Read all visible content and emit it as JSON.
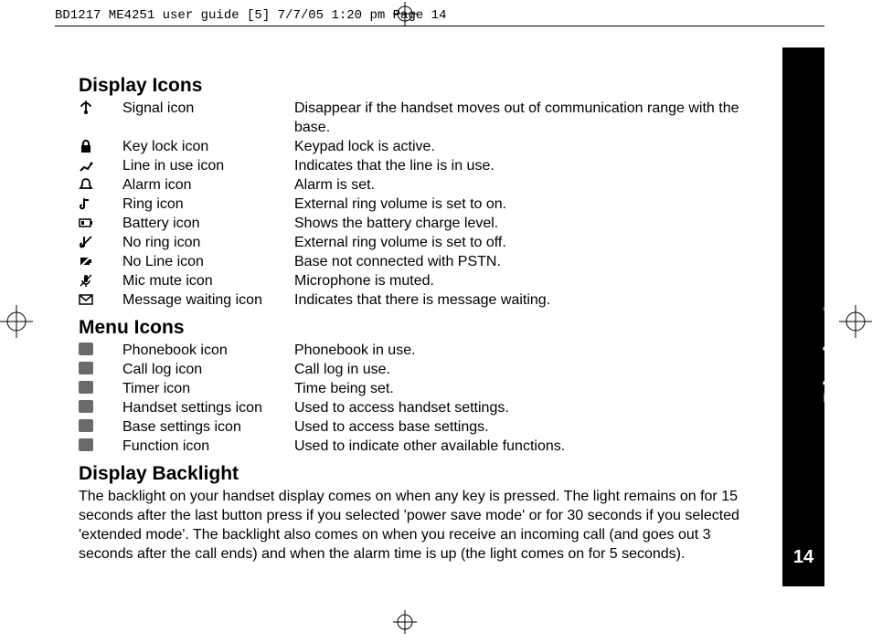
{
  "header": {
    "text": "BD1217 ME4251 user guide [5]  7/7/05  1:20 pm  Page 14"
  },
  "sideTab": {
    "label": "Display Icons",
    "pageNumber": "14"
  },
  "sections": {
    "displayIcons": {
      "title": "Display Icons",
      "rows": [
        {
          "glyph": "📡",
          "glyphClass": "signal",
          "name": "Signal icon",
          "desc": " Disappear if the handset moves out of communication range with the base."
        },
        {
          "glyph": "🔒",
          "glyphClass": "lock",
          "name": "Key lock icon",
          "desc": "Keypad lock is active."
        },
        {
          "glyph": "📞",
          "glyphClass": "lineuse",
          "name": "Line in use icon",
          "desc": "Indicates that the line is in use."
        },
        {
          "glyph": "🔔",
          "glyphClass": "alarm",
          "name": "Alarm icon",
          "desc": "Alarm is set."
        },
        {
          "glyph": "♪",
          "glyphClass": "ring",
          "name": "Ring icon",
          "desc": "External ring volume is set to on."
        },
        {
          "glyph": "▭",
          "glyphClass": "battery",
          "name": "Battery icon",
          "desc": "Shows the battery charge level."
        },
        {
          "glyph": "🔕",
          "glyphClass": "noring",
          "name": "No ring icon",
          "desc": "External ring volume is set to off."
        },
        {
          "glyph": "⎋",
          "glyphClass": "noline",
          "name": "No Line icon",
          "desc": "Base not connected with PSTN."
        },
        {
          "glyph": "🎤",
          "glyphClass": "micmute",
          "name": "Mic mute icon",
          "desc": "Microphone is muted."
        },
        {
          "glyph": "✉",
          "glyphClass": "msg",
          "name": "Message waiting icon",
          "desc": "Indicates that there is message waiting."
        }
      ]
    },
    "menuIcons": {
      "title": "Menu Icons",
      "rows": [
        {
          "glyph": "box",
          "name": "Phonebook icon",
          "desc": "Phonebook in use."
        },
        {
          "glyph": "box",
          "name": "Call log icon",
          "desc": "Call log in use."
        },
        {
          "glyph": "box",
          "name": "Timer icon",
          "desc": "Time being set."
        },
        {
          "glyph": "box",
          "name": "Handset settings icon",
          "desc": "Used to access handset settings."
        },
        {
          "glyph": "box",
          "name": "Base settings icon",
          "desc": "Used to access base settings."
        },
        {
          "glyph": "box",
          "name": "Function icon",
          "desc": "Used to indicate other available functions."
        }
      ]
    },
    "backlight": {
      "title": "Display Backlight",
      "body": "The backlight on your handset display comes on when any key is pressed. The light remains on for 15 seconds after the last button press if you selected 'power save mode' or for 30 seconds if you  selected 'extended mode'.  The backlight also comes on when you receive an incoming call (and goes out 3 seconds after the call ends) and when the alarm time is up (the light comes on for 5 seconds)."
    }
  },
  "colors": {
    "text": "#000000",
    "background": "#ffffff",
    "tabBackground": "#000000",
    "tabText": "#ffffff",
    "menuIconFill": "#6a6a6a"
  },
  "typography": {
    "bodyFontSize": 16,
    "sectionTitleFontSize": 21,
    "sectionTitleWeight": "bold",
    "sideTabFontSize": 26,
    "headerFontFamily": "monospace",
    "headerFontSize": 14
  },
  "layout": {
    "pageWidth": 954,
    "pageHeight": 704,
    "iconColumnWidth": 48,
    "nameColumnWidth": 188,
    "rowLineHeight": 21
  }
}
